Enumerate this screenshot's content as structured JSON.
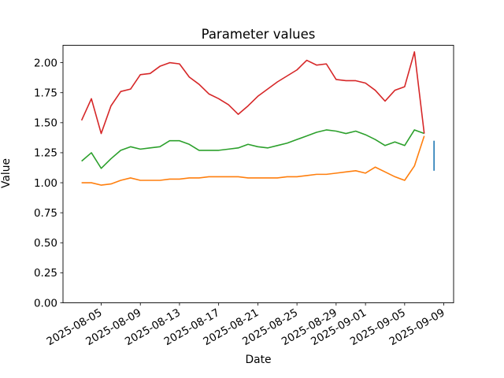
{
  "chart_data": {
    "type": "line",
    "title": "Parameter values",
    "xlabel": "Date",
    "ylabel": "Value",
    "grid": false,
    "legend": null,
    "ylim": [
      0,
      2.145
    ],
    "y_ticks": [
      0,
      0.25,
      0.5,
      0.75,
      1.0,
      1.25,
      1.5,
      1.75,
      2.0
    ],
    "y_tick_labels": [
      "0.00",
      "0.25",
      "0.50",
      "0.75",
      "1.00",
      "1.25",
      "1.50",
      "1.75",
      "2.00"
    ],
    "x_epoch": "2025-08-03",
    "xlim_days": [
      -1.9,
      38.0
    ],
    "x_tick_labels": [
      "2025-08-05",
      "2025-08-09",
      "2025-08-13",
      "2025-08-17",
      "2025-08-21",
      "2025-08-25",
      "2025-08-29",
      "2025-09-01",
      "2025-09-05",
      "2025-09-09"
    ],
    "series": [
      {
        "name": "blue",
        "color": "#1f77b4",
        "dates": [
          "2025-09-08",
          "2025-09-08"
        ],
        "values": [
          1.1,
          1.35
        ]
      },
      {
        "name": "orange",
        "color": "#ff7f0e",
        "start_date": "2025-08-03",
        "values": [
          1.0,
          1.0,
          0.98,
          0.99,
          1.02,
          1.04,
          1.02,
          1.02,
          1.02,
          1.03,
          1.03,
          1.04,
          1.04,
          1.05,
          1.05,
          1.05,
          1.05,
          1.04,
          1.04,
          1.04,
          1.04,
          1.05,
          1.05,
          1.06,
          1.07,
          1.07,
          1.08,
          1.09,
          1.1,
          1.08,
          1.13,
          1.09,
          1.05,
          1.02,
          1.14,
          1.39
        ]
      },
      {
        "name": "green",
        "color": "#2ca02c",
        "start_date": "2025-08-03",
        "values": [
          1.18,
          1.25,
          1.12,
          1.2,
          1.27,
          1.3,
          1.28,
          1.29,
          1.3,
          1.35,
          1.35,
          1.32,
          1.27,
          1.27,
          1.27,
          1.28,
          1.29,
          1.32,
          1.3,
          1.29,
          1.31,
          1.33,
          1.36,
          1.39,
          1.42,
          1.44,
          1.43,
          1.41,
          1.43,
          1.4,
          1.36,
          1.31,
          1.34,
          1.31,
          1.44,
          1.41
        ]
      },
      {
        "name": "red",
        "color": "#d62728",
        "start_date": "2025-08-03",
        "values": [
          1.52,
          1.7,
          1.41,
          1.64,
          1.76,
          1.78,
          1.9,
          1.91,
          1.97,
          2.0,
          1.99,
          1.88,
          1.82,
          1.74,
          1.7,
          1.65,
          1.57,
          1.64,
          1.72,
          1.78,
          1.84,
          1.89,
          1.94,
          2.02,
          1.98,
          1.99,
          1.86,
          1.85,
          1.85,
          1.83,
          1.77,
          1.68,
          1.77,
          1.8,
          2.09,
          1.41
        ]
      }
    ]
  }
}
